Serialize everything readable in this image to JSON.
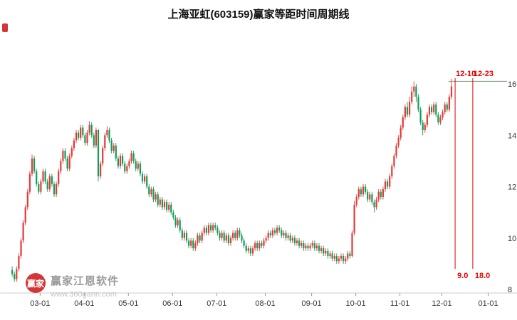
{
  "page": {
    "title": "上海亚虹(603159)赢家等距时间周期线"
  },
  "watermark": {
    "logo_text": "赢家",
    "brand": "赢家江恩软件",
    "url": "www.360gann.com"
  },
  "chart_data": {
    "type": "candlestick",
    "title": "上海亚虹(603159)赢家等距时间周期线",
    "stock_name": "上海亚虹",
    "stock_code": "603159",
    "legend_position": "none",
    "grid": false,
    "y_axis": {
      "side": "right",
      "ticks": [
        16,
        14,
        12,
        10,
        8
      ],
      "range": [
        7.9,
        16.6
      ]
    },
    "x_axis": {
      "tick_labels": [
        "03-01",
        "04-01",
        "05-01",
        "06-01",
        "07-01",
        "08-01",
        "09-01",
        "10-01",
        "11-01",
        "12-01",
        "01-01"
      ],
      "tick_indices": [
        13,
        33,
        53,
        73,
        93,
        115,
        136,
        156,
        176,
        195,
        216
      ]
    },
    "colors": {
      "up": "#e53935",
      "down": "#0f9d58",
      "annotation": "#e60000",
      "axis": "#cccccc",
      "tick": "#999999",
      "axis_text": "#333333",
      "hline": "#7a9a7a"
    },
    "annotations": {
      "vlines": [
        {
          "date": "12-10",
          "index": 201,
          "bottom_label": "9.0"
        },
        {
          "date": "12-23",
          "index": 209,
          "bottom_label": "18.0"
        }
      ],
      "hline": {
        "price": 16.1,
        "from_index": 198
      }
    },
    "candles": [
      [
        8.75,
        8.9,
        8.5,
        8.6
      ],
      [
        8.6,
        8.7,
        8.3,
        8.4
      ],
      [
        8.4,
        8.9,
        8.3,
        8.8
      ],
      [
        8.8,
        9.4,
        8.7,
        9.3
      ],
      [
        9.3,
        10.0,
        9.2,
        9.9
      ],
      [
        9.9,
        10.7,
        9.8,
        10.6
      ],
      [
        10.6,
        11.3,
        10.5,
        11.2
      ],
      [
        11.2,
        11.9,
        11.1,
        11.8
      ],
      [
        11.8,
        12.6,
        11.7,
        12.5
      ],
      [
        12.5,
        13.25,
        12.4,
        13.1
      ],
      [
        13.1,
        13.2,
        12.5,
        12.6
      ],
      [
        12.6,
        12.7,
        12.0,
        12.1
      ],
      [
        12.1,
        12.2,
        11.7,
        11.8
      ],
      [
        11.8,
        12.3,
        11.7,
        12.2
      ],
      [
        12.2,
        12.7,
        12.1,
        12.6
      ],
      [
        12.6,
        12.7,
        12.1,
        12.2
      ],
      [
        12.2,
        12.3,
        11.8,
        11.9
      ],
      [
        11.9,
        12.5,
        11.8,
        12.4
      ],
      [
        12.4,
        12.5,
        12.0,
        12.1
      ],
      [
        12.1,
        12.2,
        11.6,
        11.7
      ],
      [
        11.7,
        12.2,
        11.6,
        12.1
      ],
      [
        12.1,
        12.7,
        12.0,
        12.6
      ],
      [
        12.6,
        13.1,
        12.5,
        13.0
      ],
      [
        13.0,
        13.5,
        12.9,
        13.4
      ],
      [
        13.4,
        13.5,
        13.0,
        13.1
      ],
      [
        13.1,
        13.2,
        12.6,
        12.7
      ],
      [
        12.7,
        13.3,
        12.6,
        13.2
      ],
      [
        13.2,
        13.6,
        13.1,
        13.5
      ],
      [
        13.5,
        13.9,
        13.4,
        13.8
      ],
      [
        13.8,
        14.2,
        13.7,
        14.1
      ],
      [
        14.1,
        14.2,
        13.8,
        13.9
      ],
      [
        13.9,
        14.4,
        13.8,
        14.3
      ],
      [
        14.3,
        14.4,
        13.9,
        14.0
      ],
      [
        14.0,
        14.1,
        13.6,
        13.7
      ],
      [
        13.7,
        14.2,
        13.6,
        14.1
      ],
      [
        14.1,
        14.55,
        14.0,
        14.4
      ],
      [
        14.4,
        14.5,
        13.9,
        14.0
      ],
      [
        14.0,
        14.1,
        13.5,
        13.6
      ],
      [
        13.6,
        14.3,
        13.5,
        14.2
      ],
      [
        14.2,
        14.25,
        12.2,
        12.4
      ],
      [
        12.4,
        13.0,
        12.3,
        12.9
      ],
      [
        12.9,
        13.6,
        12.8,
        13.5
      ],
      [
        13.5,
        14.1,
        13.4,
        14.0
      ],
      [
        14.0,
        14.35,
        13.9,
        14.2
      ],
      [
        14.2,
        14.3,
        13.7,
        13.8
      ],
      [
        13.8,
        13.9,
        13.3,
        13.4
      ],
      [
        13.4,
        13.7,
        13.3,
        13.6
      ],
      [
        13.6,
        13.7,
        13.0,
        13.1
      ],
      [
        13.1,
        13.2,
        12.7,
        12.8
      ],
      [
        12.8,
        13.3,
        12.7,
        13.2
      ],
      [
        13.2,
        13.3,
        12.8,
        12.9
      ],
      [
        12.9,
        13.0,
        12.5,
        12.6
      ],
      [
        12.6,
        12.9,
        12.5,
        12.8
      ],
      [
        12.8,
        13.1,
        12.7,
        13.0
      ],
      [
        13.0,
        13.4,
        12.9,
        13.3
      ],
      [
        13.3,
        13.4,
        12.9,
        13.0
      ],
      [
        13.0,
        13.1,
        12.6,
        12.7
      ],
      [
        12.7,
        13.0,
        12.6,
        12.9
      ],
      [
        12.9,
        13.0,
        12.4,
        12.5
      ],
      [
        12.5,
        12.6,
        12.1,
        12.2
      ],
      [
        12.2,
        12.5,
        12.1,
        12.4
      ],
      [
        12.4,
        12.5,
        11.9,
        12.0
      ],
      [
        12.0,
        12.1,
        11.6,
        11.7
      ],
      [
        11.7,
        12.0,
        11.6,
        11.9
      ],
      [
        11.9,
        12.0,
        11.4,
        11.5
      ],
      [
        11.5,
        11.8,
        11.4,
        11.7
      ],
      [
        11.7,
        11.8,
        11.2,
        11.3
      ],
      [
        11.3,
        11.6,
        11.2,
        11.5
      ],
      [
        11.5,
        11.6,
        11.1,
        11.2
      ],
      [
        11.2,
        11.5,
        11.1,
        11.4
      ],
      [
        11.4,
        11.5,
        11.0,
        11.1
      ],
      [
        11.1,
        11.4,
        11.0,
        11.3
      ],
      [
        11.3,
        11.4,
        10.9,
        11.0
      ],
      [
        11.0,
        11.1,
        10.7,
        10.8
      ],
      [
        10.8,
        10.9,
        10.4,
        10.5
      ],
      [
        10.5,
        10.8,
        10.4,
        10.7
      ],
      [
        10.7,
        10.8,
        10.2,
        10.3
      ],
      [
        10.3,
        10.4,
        9.9,
        10.0
      ],
      [
        10.0,
        10.3,
        9.9,
        10.2
      ],
      [
        10.2,
        10.3,
        9.8,
        9.9
      ],
      [
        9.9,
        10.0,
        9.6,
        9.7
      ],
      [
        9.7,
        10.0,
        9.6,
        9.9
      ],
      [
        9.9,
        10.0,
        9.5,
        9.6
      ],
      [
        9.6,
        9.9,
        9.5,
        9.8
      ],
      [
        9.8,
        10.2,
        9.7,
        10.1
      ],
      [
        10.1,
        10.2,
        9.8,
        9.9
      ],
      [
        9.9,
        10.3,
        9.8,
        10.2
      ],
      [
        10.2,
        10.5,
        10.1,
        10.4
      ],
      [
        10.4,
        10.5,
        10.1,
        10.2
      ],
      [
        10.2,
        10.6,
        10.1,
        10.5
      ],
      [
        10.5,
        10.6,
        10.2,
        10.3
      ],
      [
        10.3,
        10.6,
        10.2,
        10.5
      ],
      [
        10.5,
        10.6,
        10.3,
        10.4
      ],
      [
        10.4,
        10.5,
        10.1,
        10.2
      ],
      [
        10.2,
        10.3,
        9.9,
        10.0
      ],
      [
        10.0,
        10.3,
        9.9,
        10.2
      ],
      [
        10.2,
        10.3,
        9.8,
        9.9
      ],
      [
        9.9,
        10.2,
        9.8,
        10.1
      ],
      [
        10.1,
        10.2,
        9.7,
        9.8
      ],
      [
        9.8,
        10.1,
        9.7,
        10.0
      ],
      [
        10.0,
        10.3,
        9.9,
        10.2
      ],
      [
        10.2,
        10.3,
        9.9,
        10.0
      ],
      [
        10.0,
        10.4,
        9.9,
        10.3
      ],
      [
        10.3,
        10.4,
        10.0,
        10.1
      ],
      [
        10.1,
        10.2,
        9.8,
        9.9
      ],
      [
        9.9,
        10.0,
        9.6,
        9.7
      ],
      [
        9.7,
        9.8,
        9.4,
        9.5
      ],
      [
        9.5,
        9.7,
        9.4,
        9.6
      ],
      [
        9.6,
        9.7,
        9.3,
        9.4
      ],
      [
        9.4,
        9.7,
        9.3,
        9.6
      ],
      [
        9.6,
        9.9,
        9.5,
        9.8
      ],
      [
        9.8,
        9.9,
        9.5,
        9.6
      ],
      [
        9.6,
        9.9,
        9.5,
        9.8
      ],
      [
        9.8,
        9.9,
        9.6,
        9.7
      ],
      [
        9.7,
        10.0,
        9.6,
        9.9
      ],
      [
        9.9,
        10.1,
        9.8,
        10.0
      ],
      [
        10.0,
        10.3,
        9.9,
        10.2
      ],
      [
        10.2,
        10.3,
        10.0,
        10.1
      ],
      [
        10.1,
        10.4,
        10.0,
        10.3
      ],
      [
        10.3,
        10.4,
        10.1,
        10.2
      ],
      [
        10.2,
        10.5,
        10.1,
        10.4
      ],
      [
        10.4,
        10.5,
        10.2,
        10.3
      ],
      [
        10.3,
        10.4,
        10.0,
        10.1
      ],
      [
        10.1,
        10.3,
        10.0,
        10.2
      ],
      [
        10.2,
        10.3,
        9.9,
        10.0
      ],
      [
        10.0,
        10.2,
        9.9,
        10.1
      ],
      [
        10.1,
        10.2,
        9.8,
        9.9
      ],
      [
        9.9,
        10.1,
        9.8,
        10.0
      ],
      [
        10.0,
        10.1,
        9.7,
        9.8
      ],
      [
        9.8,
        10.0,
        9.7,
        9.9
      ],
      [
        9.9,
        10.0,
        9.6,
        9.7
      ],
      [
        9.7,
        9.9,
        9.6,
        9.8
      ],
      [
        9.8,
        9.9,
        9.5,
        9.6
      ],
      [
        9.6,
        9.8,
        9.5,
        9.7
      ],
      [
        9.7,
        9.8,
        9.5,
        9.6
      ],
      [
        9.6,
        9.8,
        9.5,
        9.7
      ],
      [
        9.7,
        9.9,
        9.6,
        9.8
      ],
      [
        9.8,
        9.9,
        9.5,
        9.6
      ],
      [
        9.6,
        9.8,
        9.5,
        9.7
      ],
      [
        9.7,
        9.8,
        9.4,
        9.5
      ],
      [
        9.5,
        9.7,
        9.4,
        9.6
      ],
      [
        9.6,
        9.7,
        9.3,
        9.4
      ],
      [
        9.4,
        9.6,
        9.3,
        9.5
      ],
      [
        9.5,
        9.6,
        9.2,
        9.3
      ],
      [
        9.3,
        9.5,
        9.2,
        9.4
      ],
      [
        9.4,
        9.5,
        9.1,
        9.2
      ],
      [
        9.2,
        9.4,
        9.1,
        9.3
      ],
      [
        9.3,
        9.4,
        9.0,
        9.1
      ],
      [
        9.1,
        9.3,
        9.0,
        9.2
      ],
      [
        9.2,
        9.4,
        9.1,
        9.3
      ],
      [
        9.3,
        9.4,
        9.0,
        9.1
      ],
      [
        9.1,
        9.3,
        9.0,
        9.2
      ],
      [
        9.2,
        9.5,
        9.1,
        9.4
      ],
      [
        9.4,
        9.5,
        9.2,
        9.3
      ],
      [
        9.3,
        10.3,
        9.25,
        10.2
      ],
      [
        10.2,
        11.45,
        10.1,
        11.3
      ],
      [
        11.3,
        11.7,
        11.2,
        11.6
      ],
      [
        11.6,
        12.0,
        11.5,
        11.9
      ],
      [
        11.9,
        12.0,
        11.6,
        11.7
      ],
      [
        11.7,
        12.1,
        11.6,
        12.0
      ],
      [
        12.0,
        12.1,
        11.7,
        11.8
      ],
      [
        11.8,
        11.9,
        11.4,
        11.5
      ],
      [
        11.5,
        11.8,
        11.4,
        11.7
      ],
      [
        11.7,
        11.8,
        11.3,
        11.4
      ],
      [
        11.4,
        11.5,
        11.0,
        11.2
      ],
      [
        11.2,
        11.6,
        11.1,
        11.5
      ],
      [
        11.5,
        11.9,
        11.4,
        11.8
      ],
      [
        11.8,
        11.9,
        11.5,
        11.6
      ],
      [
        11.6,
        12.0,
        11.5,
        11.9
      ],
      [
        11.9,
        12.3,
        11.8,
        12.2
      ],
      [
        12.2,
        12.3,
        11.9,
        12.0
      ],
      [
        12.0,
        12.5,
        11.9,
        12.4
      ],
      [
        12.4,
        12.9,
        12.3,
        12.8
      ],
      [
        12.8,
        13.3,
        12.7,
        13.2
      ],
      [
        13.2,
        13.7,
        13.1,
        13.6
      ],
      [
        13.6,
        14.0,
        13.5,
        13.9
      ],
      [
        13.9,
        14.4,
        13.8,
        14.3
      ],
      [
        14.3,
        14.8,
        14.2,
        14.7
      ],
      [
        14.7,
        15.2,
        14.6,
        15.1
      ],
      [
        15.1,
        15.3,
        14.7,
        14.8
      ],
      [
        14.8,
        15.5,
        14.7,
        15.3
      ],
      [
        15.3,
        15.9,
        15.2,
        15.7
      ],
      [
        15.7,
        16.1,
        15.5,
        15.9
      ],
      [
        15.9,
        16.0,
        15.3,
        15.5
      ],
      [
        15.5,
        15.6,
        14.9,
        15.0
      ],
      [
        15.0,
        15.1,
        14.4,
        14.5
      ],
      [
        14.5,
        14.6,
        14.0,
        14.2
      ],
      [
        14.2,
        14.5,
        14.1,
        14.4
      ],
      [
        14.4,
        14.9,
        14.3,
        14.8
      ],
      [
        14.8,
        15.2,
        14.7,
        15.1
      ],
      [
        15.1,
        15.2,
        14.8,
        14.9
      ],
      [
        14.9,
        15.3,
        14.8,
        15.2
      ],
      [
        15.2,
        15.3,
        14.7,
        14.8
      ],
      [
        14.8,
        14.9,
        14.4,
        14.5
      ],
      [
        14.5,
        14.8,
        14.4,
        14.7
      ],
      [
        14.7,
        15.0,
        14.6,
        14.9
      ],
      [
        14.9,
        15.3,
        14.8,
        15.2
      ],
      [
        15.2,
        15.3,
        14.9,
        15.0
      ],
      [
        15.0,
        15.6,
        14.9,
        15.5
      ],
      [
        15.5,
        16.2,
        15.4,
        15.9
      ]
    ]
  }
}
